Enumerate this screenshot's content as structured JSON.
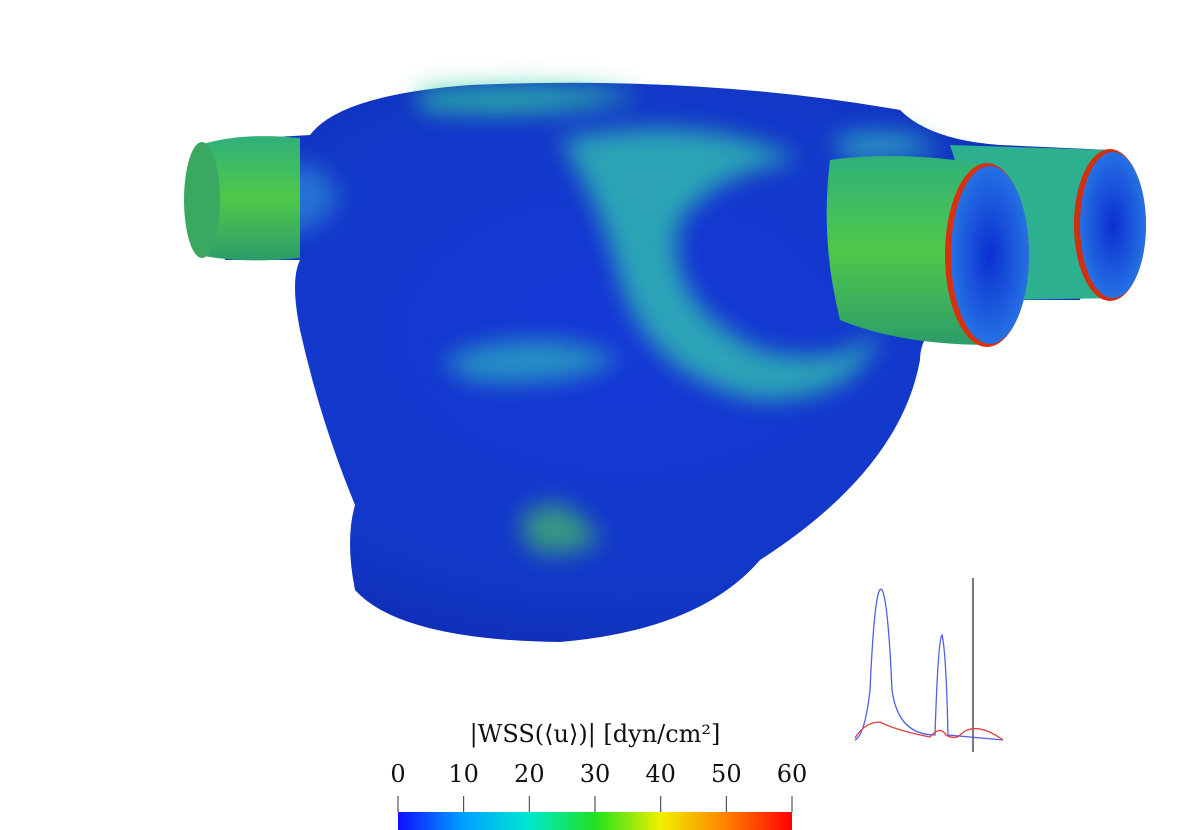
{
  "colorbar": {
    "label": "|WSS(⟨u⟩)| [dyn/cm²]",
    "range": [
      0,
      60
    ],
    "ticks": [
      0,
      10,
      20,
      30,
      40,
      50,
      60
    ],
    "colors": [
      "#1010ff",
      "#00a0ff",
      "#00e8d0",
      "#20e020",
      "#f0f000",
      "#ff8000",
      "#ff0000"
    ]
  }
}
